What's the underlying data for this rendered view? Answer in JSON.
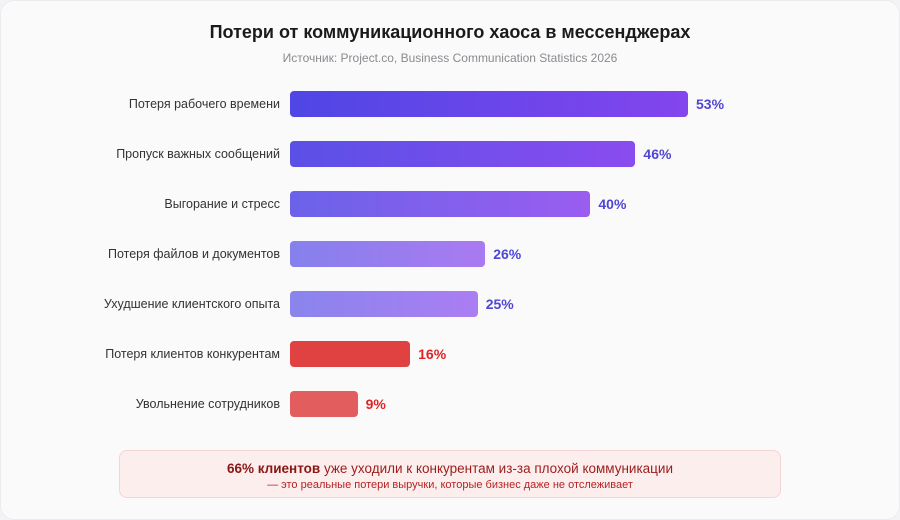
{
  "chart_data": {
    "type": "bar",
    "orientation": "horizontal",
    "title": "Потери от коммуникационного хаоса в мессенджерах",
    "subtitle": "Источник: Project.co, Business Communication Statistics 2026",
    "categories": [
      "Потеря рабочего времени",
      "Пропуск важных сообщений",
      "Выгорание и стресс",
      "Потеря файлов и документов",
      "Ухудшение клиентского опыта",
      "Потеря клиентов конкурентам",
      "Увольнение сотрудников"
    ],
    "values": [
      53,
      46,
      40,
      26,
      25,
      16,
      9
    ],
    "value_labels": [
      "53%",
      "46%",
      "40%",
      "26%",
      "25%",
      "16%",
      "9%"
    ],
    "unit": "%",
    "grid": false,
    "colors": [
      [
        "#4f46e5",
        "#8345ee"
      ],
      [
        "#5a50e6",
        "#8a4cef"
      ],
      [
        "#6b62e9",
        "#9a5df0"
      ],
      [
        "#8680ec",
        "#a97af1"
      ],
      [
        "#8a84ed",
        "#aa7ef2"
      ],
      [
        "#e04242",
        "#e04242"
      ],
      [
        "#e25d5e",
        "#e25d5e"
      ]
    ],
    "label_colors": [
      "#4f46d5",
      "#4f46d5",
      "#4f46d5",
      "#4f46d5",
      "#4f46d5",
      "#dc2626",
      "#dc2626"
    ]
  },
  "note": {
    "bold": "66% клиентов",
    "text": " уже уходили к конкурентам из-за плохой коммуникации",
    "sub": "— это реальные потери выручки, которые бизнес даже не отслеживает"
  }
}
